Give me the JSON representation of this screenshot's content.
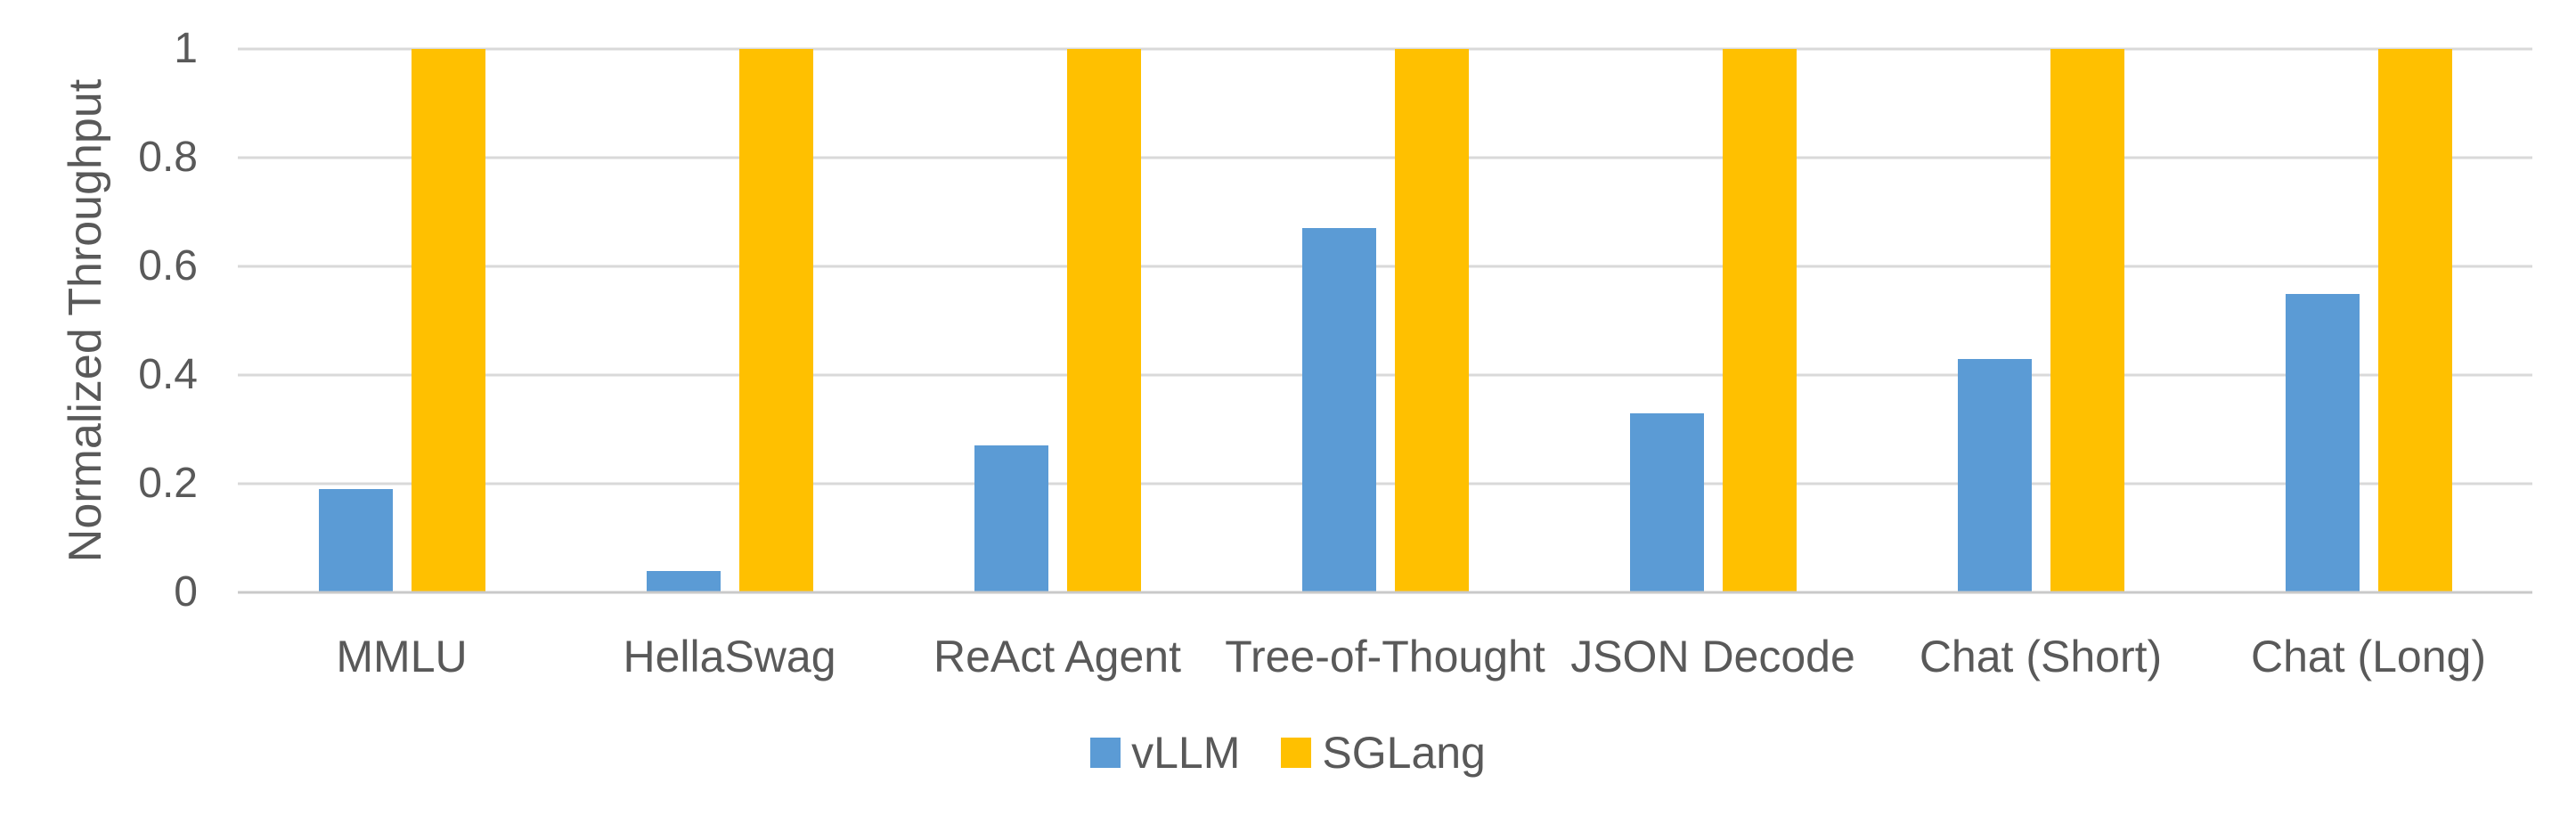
{
  "chart_data": {
    "type": "bar",
    "title": "",
    "xlabel": "",
    "ylabel": "Normalized Throughput",
    "categories": [
      "MMLU",
      "HellaSwag",
      "ReAct Agent",
      "Tree-of-Thought",
      "JSON Decode",
      "Chat (Short)",
      "Chat (Long)"
    ],
    "series": [
      {
        "name": "vLLM",
        "color": "#5B9BD5",
        "values": [
          0.19,
          0.04,
          0.27,
          0.67,
          0.33,
          0.43,
          0.55
        ]
      },
      {
        "name": "SGLang",
        "color": "#FFC000",
        "values": [
          1,
          1,
          1,
          1,
          1,
          1,
          1
        ]
      }
    ],
    "ylim": [
      0,
      1
    ],
    "yticks": [
      {
        "value": 0,
        "label": "0"
      },
      {
        "value": 0.2,
        "label": "0.2"
      },
      {
        "value": 0.4,
        "label": "0.4"
      },
      {
        "value": 0.6,
        "label": "0.6"
      },
      {
        "value": 0.8,
        "label": "0.8"
      },
      {
        "value": 1,
        "label": "1"
      }
    ],
    "grid": "horizontal",
    "legend_position": "bottom-center",
    "colors": {
      "gridline": "#D9D9D9",
      "axis_line": "#C9C9C9",
      "text": "#595959",
      "background": "#FFFFFF"
    }
  }
}
